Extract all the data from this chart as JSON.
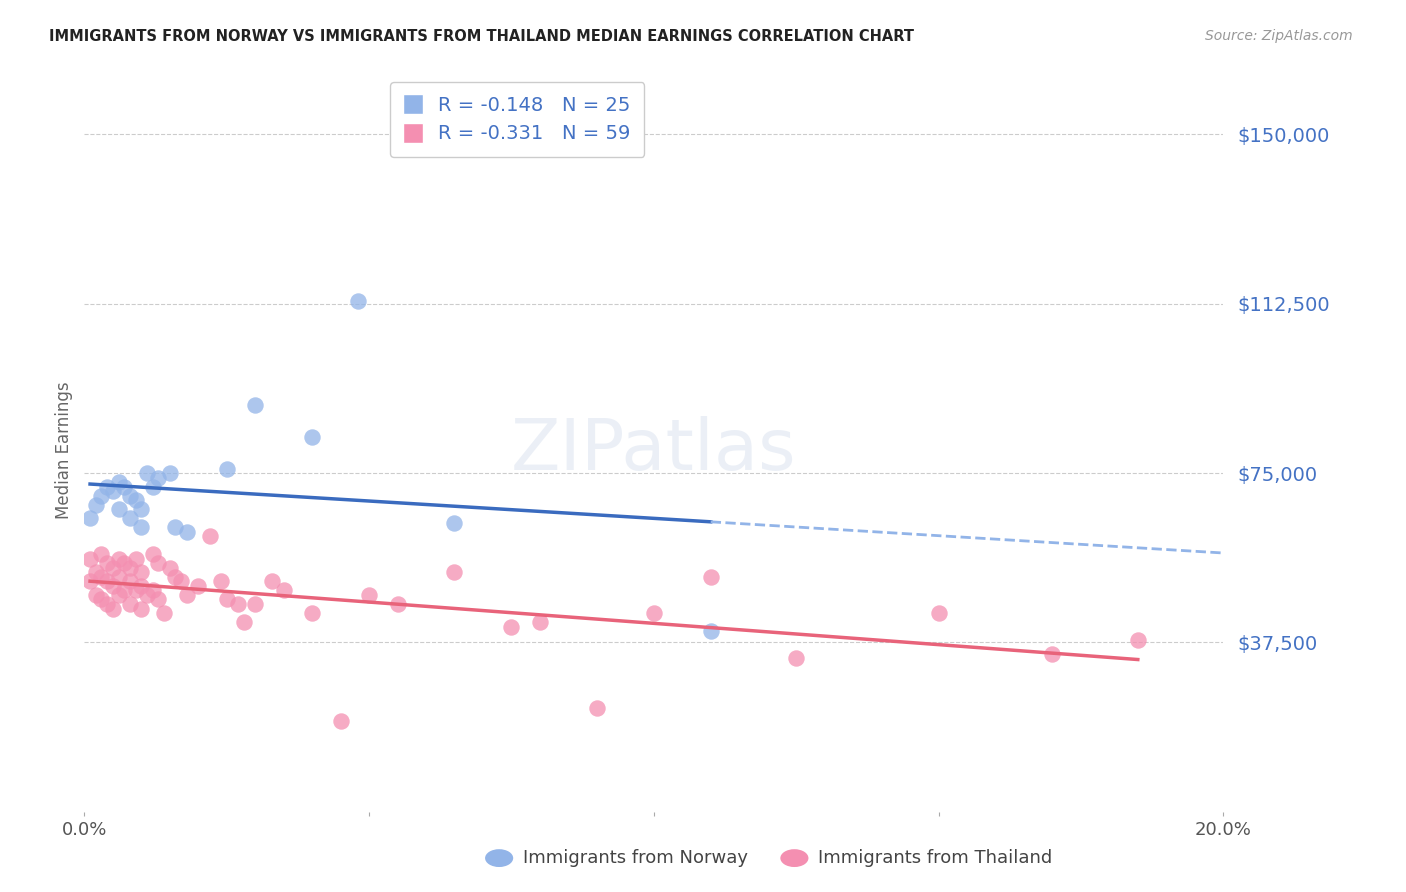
{
  "title": "IMMIGRANTS FROM NORWAY VS IMMIGRANTS FROM THAILAND MEDIAN EARNINGS CORRELATION CHART",
  "source": "Source: ZipAtlas.com",
  "ylabel": "Median Earnings",
  "xlim": [
    0.0,
    0.2
  ],
  "ylim": [
    0,
    160000
  ],
  "yticks": [
    37500,
    75000,
    112500,
    150000
  ],
  "ytick_labels": [
    "$37,500",
    "$75,000",
    "$112,500",
    "$150,000"
  ],
  "xticks": [
    0.0,
    0.05,
    0.1,
    0.15,
    0.2
  ],
  "xtick_labels": [
    "0.0%",
    "",
    "",
    "",
    "20.0%"
  ],
  "norway_R": -0.148,
  "norway_N": 25,
  "thailand_R": -0.331,
  "thailand_N": 59,
  "norway_color": "#92b4e8",
  "thailand_color": "#f48fb1",
  "norway_line_color": "#3a6bbf",
  "thailand_line_color": "#e8637a",
  "dashed_line_color": "#92b4e8",
  "legend_label_norway": "Immigrants from Norway",
  "legend_label_thailand": "Immigrants from Thailand",
  "norway_x": [
    0.001,
    0.002,
    0.003,
    0.004,
    0.005,
    0.006,
    0.006,
    0.007,
    0.008,
    0.008,
    0.009,
    0.01,
    0.01,
    0.011,
    0.012,
    0.013,
    0.015,
    0.016,
    0.018,
    0.025,
    0.03,
    0.04,
    0.048,
    0.065,
    0.11
  ],
  "norway_y": [
    65000,
    68000,
    70000,
    72000,
    71000,
    73000,
    67000,
    72000,
    70000,
    65000,
    69000,
    63000,
    67000,
    75000,
    72000,
    74000,
    75000,
    63000,
    62000,
    76000,
    90000,
    83000,
    113000,
    64000,
    40000
  ],
  "thailand_x": [
    0.001,
    0.001,
    0.002,
    0.002,
    0.003,
    0.003,
    0.003,
    0.004,
    0.004,
    0.004,
    0.005,
    0.005,
    0.005,
    0.006,
    0.006,
    0.006,
    0.007,
    0.007,
    0.008,
    0.008,
    0.008,
    0.009,
    0.009,
    0.01,
    0.01,
    0.01,
    0.011,
    0.012,
    0.012,
    0.013,
    0.013,
    0.014,
    0.015,
    0.016,
    0.017,
    0.018,
    0.02,
    0.022,
    0.024,
    0.025,
    0.027,
    0.028,
    0.03,
    0.033,
    0.035,
    0.04,
    0.045,
    0.05,
    0.055,
    0.065,
    0.075,
    0.08,
    0.09,
    0.1,
    0.11,
    0.125,
    0.15,
    0.17,
    0.185
  ],
  "thailand_y": [
    56000,
    51000,
    53000,
    48000,
    57000,
    52000,
    47000,
    55000,
    51000,
    46000,
    54000,
    50000,
    45000,
    56000,
    52000,
    48000,
    55000,
    49000,
    54000,
    51000,
    46000,
    56000,
    49000,
    53000,
    50000,
    45000,
    48000,
    57000,
    49000,
    55000,
    47000,
    44000,
    54000,
    52000,
    51000,
    48000,
    50000,
    61000,
    51000,
    47000,
    46000,
    42000,
    46000,
    51000,
    49000,
    44000,
    20000,
    48000,
    46000,
    53000,
    41000,
    42000,
    23000,
    44000,
    52000,
    34000,
    44000,
    35000,
    38000
  ]
}
